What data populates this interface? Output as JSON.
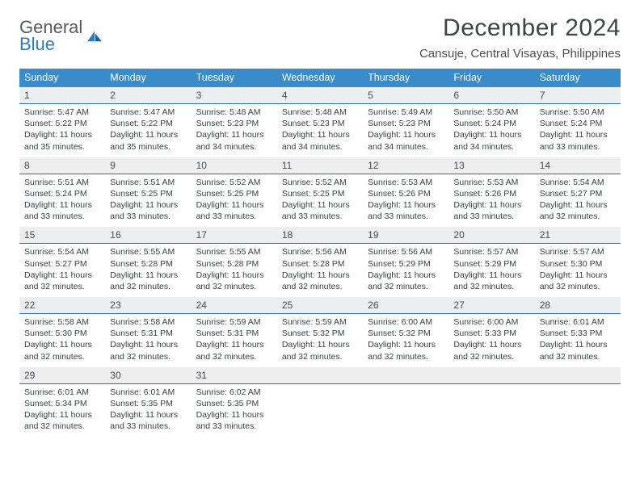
{
  "logo": {
    "line1": "General",
    "line2": "Blue",
    "icon_color": "#2f7bbf",
    "text_gray": "#555a5f"
  },
  "title": "December 2024",
  "location": "Cansuje, Central Visayas, Philippines",
  "header_bg": "#3a8bca",
  "number_row_bg": "#eceef0",
  "divider_color": "#2f6fa8",
  "weekday_color": "#ffffff",
  "text_color": "#3b3f43",
  "weekdays": [
    "Sunday",
    "Monday",
    "Tuesday",
    "Wednesday",
    "Thursday",
    "Friday",
    "Saturday"
  ],
  "weeks": [
    {
      "nums": [
        "1",
        "2",
        "3",
        "4",
        "5",
        "6",
        "7"
      ],
      "cells": [
        {
          "sunrise": "Sunrise: 5:47 AM",
          "sunset": "Sunset: 5:22 PM",
          "d1": "Daylight: 11 hours",
          "d2": "and 35 minutes."
        },
        {
          "sunrise": "Sunrise: 5:47 AM",
          "sunset": "Sunset: 5:22 PM",
          "d1": "Daylight: 11 hours",
          "d2": "and 35 minutes."
        },
        {
          "sunrise": "Sunrise: 5:48 AM",
          "sunset": "Sunset: 5:23 PM",
          "d1": "Daylight: 11 hours",
          "d2": "and 34 minutes."
        },
        {
          "sunrise": "Sunrise: 5:48 AM",
          "sunset": "Sunset: 5:23 PM",
          "d1": "Daylight: 11 hours",
          "d2": "and 34 minutes."
        },
        {
          "sunrise": "Sunrise: 5:49 AM",
          "sunset": "Sunset: 5:23 PM",
          "d1": "Daylight: 11 hours",
          "d2": "and 34 minutes."
        },
        {
          "sunrise": "Sunrise: 5:50 AM",
          "sunset": "Sunset: 5:24 PM",
          "d1": "Daylight: 11 hours",
          "d2": "and 34 minutes."
        },
        {
          "sunrise": "Sunrise: 5:50 AM",
          "sunset": "Sunset: 5:24 PM",
          "d1": "Daylight: 11 hours",
          "d2": "and 33 minutes."
        }
      ]
    },
    {
      "nums": [
        "8",
        "9",
        "10",
        "11",
        "12",
        "13",
        "14"
      ],
      "cells": [
        {
          "sunrise": "Sunrise: 5:51 AM",
          "sunset": "Sunset: 5:24 PM",
          "d1": "Daylight: 11 hours",
          "d2": "and 33 minutes."
        },
        {
          "sunrise": "Sunrise: 5:51 AM",
          "sunset": "Sunset: 5:25 PM",
          "d1": "Daylight: 11 hours",
          "d2": "and 33 minutes."
        },
        {
          "sunrise": "Sunrise: 5:52 AM",
          "sunset": "Sunset: 5:25 PM",
          "d1": "Daylight: 11 hours",
          "d2": "and 33 minutes."
        },
        {
          "sunrise": "Sunrise: 5:52 AM",
          "sunset": "Sunset: 5:25 PM",
          "d1": "Daylight: 11 hours",
          "d2": "and 33 minutes."
        },
        {
          "sunrise": "Sunrise: 5:53 AM",
          "sunset": "Sunset: 5:26 PM",
          "d1": "Daylight: 11 hours",
          "d2": "and 33 minutes."
        },
        {
          "sunrise": "Sunrise: 5:53 AM",
          "sunset": "Sunset: 5:26 PM",
          "d1": "Daylight: 11 hours",
          "d2": "and 33 minutes."
        },
        {
          "sunrise": "Sunrise: 5:54 AM",
          "sunset": "Sunset: 5:27 PM",
          "d1": "Daylight: 11 hours",
          "d2": "and 32 minutes."
        }
      ]
    },
    {
      "nums": [
        "15",
        "16",
        "17",
        "18",
        "19",
        "20",
        "21"
      ],
      "cells": [
        {
          "sunrise": "Sunrise: 5:54 AM",
          "sunset": "Sunset: 5:27 PM",
          "d1": "Daylight: 11 hours",
          "d2": "and 32 minutes."
        },
        {
          "sunrise": "Sunrise: 5:55 AM",
          "sunset": "Sunset: 5:28 PM",
          "d1": "Daylight: 11 hours",
          "d2": "and 32 minutes."
        },
        {
          "sunrise": "Sunrise: 5:55 AM",
          "sunset": "Sunset: 5:28 PM",
          "d1": "Daylight: 11 hours",
          "d2": "and 32 minutes."
        },
        {
          "sunrise": "Sunrise: 5:56 AM",
          "sunset": "Sunset: 5:28 PM",
          "d1": "Daylight: 11 hours",
          "d2": "and 32 minutes."
        },
        {
          "sunrise": "Sunrise: 5:56 AM",
          "sunset": "Sunset: 5:29 PM",
          "d1": "Daylight: 11 hours",
          "d2": "and 32 minutes."
        },
        {
          "sunrise": "Sunrise: 5:57 AM",
          "sunset": "Sunset: 5:29 PM",
          "d1": "Daylight: 11 hours",
          "d2": "and 32 minutes."
        },
        {
          "sunrise": "Sunrise: 5:57 AM",
          "sunset": "Sunset: 5:30 PM",
          "d1": "Daylight: 11 hours",
          "d2": "and 32 minutes."
        }
      ]
    },
    {
      "nums": [
        "22",
        "23",
        "24",
        "25",
        "26",
        "27",
        "28"
      ],
      "cells": [
        {
          "sunrise": "Sunrise: 5:58 AM",
          "sunset": "Sunset: 5:30 PM",
          "d1": "Daylight: 11 hours",
          "d2": "and 32 minutes."
        },
        {
          "sunrise": "Sunrise: 5:58 AM",
          "sunset": "Sunset: 5:31 PM",
          "d1": "Daylight: 11 hours",
          "d2": "and 32 minutes."
        },
        {
          "sunrise": "Sunrise: 5:59 AM",
          "sunset": "Sunset: 5:31 PM",
          "d1": "Daylight: 11 hours",
          "d2": "and 32 minutes."
        },
        {
          "sunrise": "Sunrise: 5:59 AM",
          "sunset": "Sunset: 5:32 PM",
          "d1": "Daylight: 11 hours",
          "d2": "and 32 minutes."
        },
        {
          "sunrise": "Sunrise: 6:00 AM",
          "sunset": "Sunset: 5:32 PM",
          "d1": "Daylight: 11 hours",
          "d2": "and 32 minutes."
        },
        {
          "sunrise": "Sunrise: 6:00 AM",
          "sunset": "Sunset: 5:33 PM",
          "d1": "Daylight: 11 hours",
          "d2": "and 32 minutes."
        },
        {
          "sunrise": "Sunrise: 6:01 AM",
          "sunset": "Sunset: 5:33 PM",
          "d1": "Daylight: 11 hours",
          "d2": "and 32 minutes."
        }
      ]
    },
    {
      "nums": [
        "29",
        "30",
        "31",
        "",
        "",
        "",
        ""
      ],
      "cells": [
        {
          "sunrise": "Sunrise: 6:01 AM",
          "sunset": "Sunset: 5:34 PM",
          "d1": "Daylight: 11 hours",
          "d2": "and 32 minutes."
        },
        {
          "sunrise": "Sunrise: 6:01 AM",
          "sunset": "Sunset: 5:35 PM",
          "d1": "Daylight: 11 hours",
          "d2": "and 33 minutes."
        },
        {
          "sunrise": "Sunrise: 6:02 AM",
          "sunset": "Sunset: 5:35 PM",
          "d1": "Daylight: 11 hours",
          "d2": "and 33 minutes."
        },
        null,
        null,
        null,
        null
      ]
    }
  ]
}
